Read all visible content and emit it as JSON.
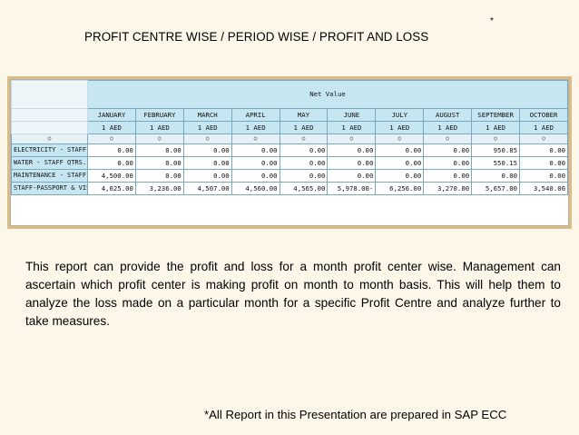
{
  "slide": {
    "title": "PROFIT CENTRE WISE / PERIOD WISE / PROFIT AND LOSS",
    "title_mark": "*",
    "body": "This report can provide the profit and loss for a month profit center wise. Management can ascertain which profit center is making profit on month to month basis.  This will help them to analyze the loss made on a particular month for a specific Profit Centre and analyze further to take measures.",
    "footnote": "*All Report in this Presentation are prepared in SAP ECC"
  },
  "report": {
    "band_label": "Net Value",
    "months": [
      {
        "name": "JANUARY",
        "currency": "1 AED",
        "marker": "○"
      },
      {
        "name": "FEBRUARY",
        "currency": "1 AED",
        "marker": "○"
      },
      {
        "name": "MARCH",
        "currency": "1 AED",
        "marker": "○"
      },
      {
        "name": "APRIL",
        "currency": "1 AED",
        "marker": "○"
      },
      {
        "name": "MAY",
        "currency": "1 AED",
        "marker": "○"
      },
      {
        "name": "JUNE",
        "currency": "1 AED",
        "marker": "○"
      },
      {
        "name": "JULY",
        "currency": "1 AED",
        "marker": "○"
      },
      {
        "name": "AUGUST",
        "currency": "1 AED",
        "marker": "○"
      },
      {
        "name": "SEPTEMBER",
        "currency": "1 AED",
        "marker": "○"
      },
      {
        "name": "OCTOBER",
        "currency": "1 AED",
        "marker": "○"
      }
    ],
    "label_marker": "○",
    "rows": [
      {
        "label": "ELECTRICITY - STAFF",
        "values": [
          "0.00",
          "0.00",
          "0.00",
          "0.00",
          "0.00",
          "0.00",
          "0.00",
          "0.00",
          "950.85",
          "0.00"
        ]
      },
      {
        "label": "WATER - STAFF QTRS.",
        "values": [
          "0.00",
          "0.00",
          "0.00",
          "0.00",
          "0.00",
          "0.00",
          "0.00",
          "0.00",
          "550.15",
          "0.00"
        ]
      },
      {
        "label": "MAINTENANCE - STAFF",
        "values": [
          "4,500.00",
          "0.00",
          "0.00",
          "0.00",
          "0.00",
          "0.00",
          "0.00",
          "0.00",
          "0.00",
          "0.00"
        ]
      },
      {
        "label": "STAFF-PASSPORT & VIS",
        "values": [
          "4,025.00",
          "3,236.00",
          "4,507.00",
          "4,560.00",
          "4,565.00",
          "5,978.00-",
          "6,256.00",
          "3,270.00",
          "5,657.00",
          "3,540.00"
        ]
      }
    ]
  }
}
